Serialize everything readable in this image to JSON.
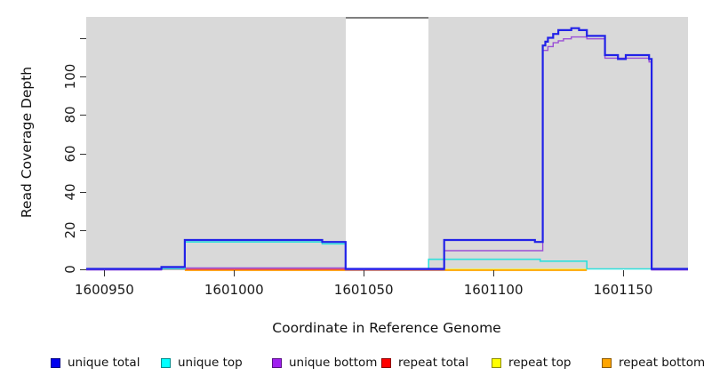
{
  "chart_data": {
    "type": "line",
    "subtype": "step",
    "title": "",
    "xlabel": "Coordinate in Reference Genome",
    "ylabel": "Read Coverage Depth",
    "xlim": [
      1600943,
      1601175
    ],
    "ylim": [
      0,
      131
    ],
    "grid": "off",
    "panel_bg": "#d9d9d9",
    "masked_region": {
      "start": 1601043,
      "end": 1601075,
      "fill": "#ffffff",
      "top_line_color": "#7f7f7f"
    },
    "x_ticks": [
      {
        "v": 1600950,
        "label": "1600950"
      },
      {
        "v": 1601000,
        "label": "1601000"
      },
      {
        "v": 1601050,
        "label": "1601050"
      },
      {
        "v": 1601100,
        "label": "1601100"
      },
      {
        "v": 1601150,
        "label": "1601150"
      }
    ],
    "y_ticks": [
      {
        "v": 0,
        "label": "0"
      },
      {
        "v": 20,
        "label": "20"
      },
      {
        "v": 40,
        "label": "40"
      },
      {
        "v": 60,
        "label": "60"
      },
      {
        "v": 80,
        "label": "80"
      },
      {
        "v": 100,
        "label": "100"
      },
      {
        "v": 120,
        "label": ""
      }
    ],
    "series": [
      {
        "name": "repeat top",
        "color": "#ffff00",
        "width": 1.1,
        "dy": 0.5,
        "points": [
          [
            1600981,
            0
          ],
          [
            1601136,
            0
          ]
        ]
      },
      {
        "name": "repeat bottom",
        "color": "#ffa500",
        "width": 1.8,
        "dy": 1.5,
        "points": [
          [
            1600981,
            0
          ],
          [
            1601136,
            0
          ]
        ]
      },
      {
        "name": "repeat total",
        "color": "#ee3344",
        "width": 1.2,
        "dy": 0.5,
        "points": [
          [
            1600972,
            0
          ],
          [
            1601081,
            0
          ]
        ]
      },
      {
        "name": "unique bottom",
        "color": "#9a4fd6",
        "width": 1.4,
        "dy": 1.2,
        "points": [
          [
            1600943,
            0
          ],
          [
            1600972,
            1
          ],
          [
            1601043,
            0
          ],
          [
            1601081,
            10
          ],
          [
            1601119,
            114
          ],
          [
            1601121,
            116
          ],
          [
            1601123,
            118
          ],
          [
            1601125,
            119
          ],
          [
            1601127,
            120
          ],
          [
            1601130,
            121
          ],
          [
            1601136,
            120
          ],
          [
            1601143,
            110
          ],
          [
            1601160,
            108
          ],
          [
            1601161,
            0
          ],
          [
            1601175,
            0
          ]
        ]
      },
      {
        "name": "unique top",
        "color": "#2fe0dc",
        "width": 1.6,
        "dy": 0,
        "points": [
          [
            1600972,
            0
          ],
          [
            1600981,
            14
          ],
          [
            1601034,
            13
          ],
          [
            1601043,
            0
          ],
          [
            1601075,
            5
          ],
          [
            1601118,
            4
          ],
          [
            1601136,
            0
          ],
          [
            1601161,
            0
          ]
        ]
      },
      {
        "name": "unique total",
        "color": "#2222e8",
        "width": 2.2,
        "dy": 0,
        "points": [
          [
            1600943,
            0
          ],
          [
            1600972,
            1
          ],
          [
            1600981,
            15
          ],
          [
            1601034,
            14
          ],
          [
            1601043,
            0
          ],
          [
            1601081,
            15
          ],
          [
            1601116,
            14
          ],
          [
            1601119,
            116
          ],
          [
            1601120,
            118
          ],
          [
            1601121,
            120
          ],
          [
            1601123,
            122
          ],
          [
            1601125,
            124
          ],
          [
            1601130,
            125
          ],
          [
            1601133,
            124
          ],
          [
            1601136,
            121
          ],
          [
            1601143,
            111
          ],
          [
            1601148,
            109
          ],
          [
            1601151,
            111
          ],
          [
            1601160,
            109
          ],
          [
            1601161,
            0
          ],
          [
            1601175,
            0
          ]
        ]
      }
    ],
    "legend": {
      "position": "bottom",
      "items": [
        {
          "label": "unique total",
          "color": "#0000ee"
        },
        {
          "label": "unique top",
          "color": "#00ffff"
        },
        {
          "label": "unique bottom",
          "color": "#a020f0"
        },
        {
          "label": "repeat total",
          "color": "#ff0000"
        },
        {
          "label": "repeat top",
          "color": "#ffff00"
        },
        {
          "label": "repeat bottom",
          "color": "#ffa500"
        }
      ]
    }
  }
}
